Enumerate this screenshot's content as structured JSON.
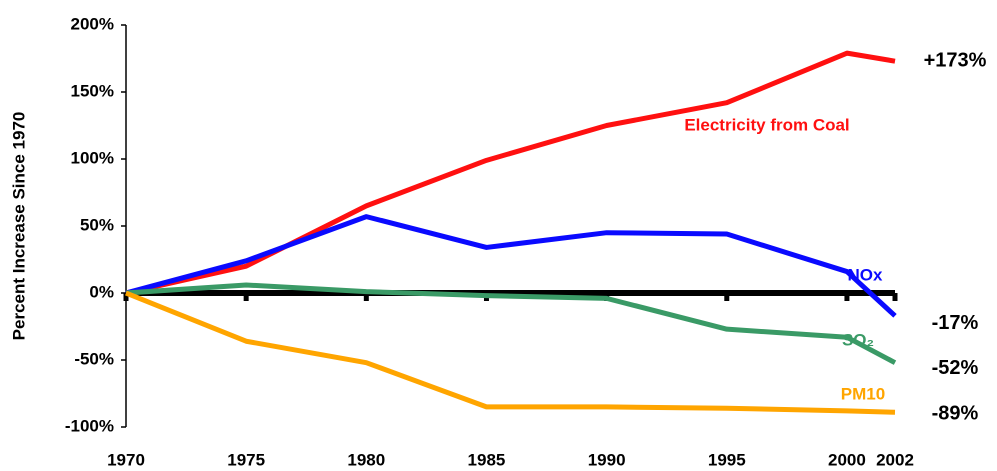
{
  "chart_data": {
    "type": "line",
    "y_label": "Percent Increase Since 1970",
    "x": [
      1970,
      1975,
      1980,
      1985,
      1990,
      1995,
      2000,
      2002
    ],
    "xlim": [
      1970,
      2002
    ],
    "xticks": [
      1970,
      1975,
      1980,
      1985,
      1990,
      1995,
      2000,
      2002
    ],
    "ylim": [
      -100,
      200
    ],
    "yticks": [
      {
        "value": -100,
        "label": "-100%"
      },
      {
        "value": -50,
        "label": "-50%"
      },
      {
        "value": 0,
        "label": "0%"
      },
      {
        "value": 50,
        "label": "50%"
      },
      {
        "value": 100,
        "label": "100%"
      },
      {
        "value": 150,
        "label": "150%"
      },
      {
        "value": 200,
        "label": "200%"
      }
    ],
    "grid": false,
    "series": [
      {
        "name": "Electricity from Coal",
        "color": "#ff1010",
        "values": [
          0,
          20,
          65,
          99,
          125,
          142,
          179,
          173
        ],
        "value_labels": [
          null,
          null,
          null,
          null,
          null,
          null,
          null,
          "+173%"
        ]
      },
      {
        "name": "NOx",
        "color": "#0a0aff",
        "values": [
          0,
          24,
          57,
          34,
          45,
          44,
          16,
          -17
        ],
        "value_labels": [
          null,
          null,
          null,
          null,
          null,
          null,
          null,
          "-17%"
        ]
      },
      {
        "name": "SO₂",
        "color": "#3a9a66",
        "values": [
          0,
          6,
          1,
          -2,
          -4,
          -27,
          -33,
          -52
        ],
        "value_labels": [
          null,
          null,
          null,
          null,
          null,
          null,
          null,
          "-52%"
        ]
      },
      {
        "name": "PM10",
        "color": "#ffa500",
        "values": [
          0,
          -36,
          -52,
          -85,
          -85,
          -86,
          -88,
          -89
        ],
        "value_labels": [
          null,
          null,
          null,
          null,
          null,
          null,
          null,
          "-89%"
        ]
      }
    ]
  }
}
